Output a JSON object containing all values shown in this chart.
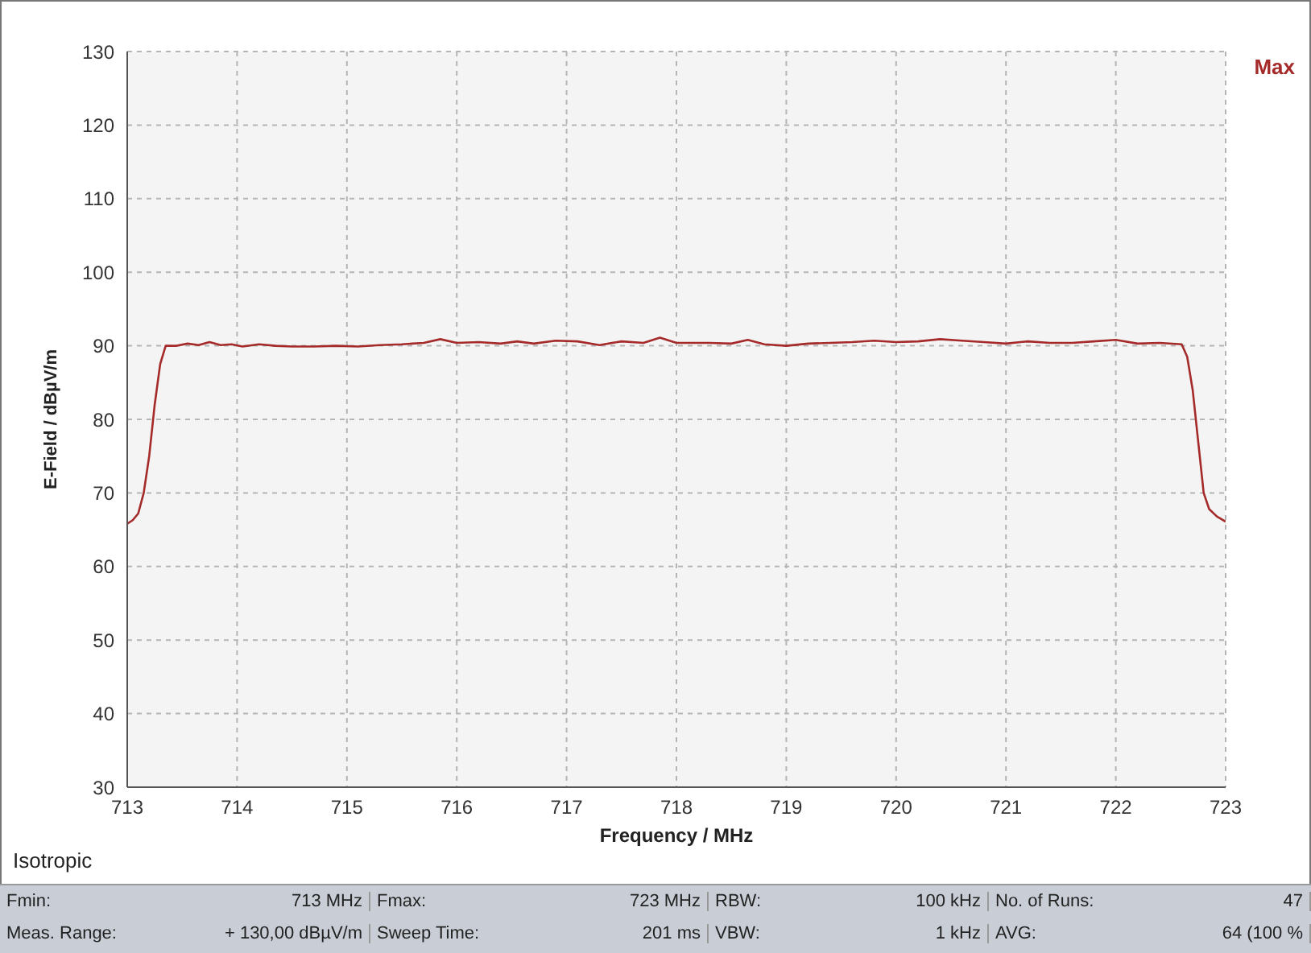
{
  "chart_data": {
    "type": "line",
    "xlabel": "Frequency / MHz",
    "ylabel": "E-Field / dBµV/m",
    "xlim": [
      713,
      723
    ],
    "xticks": [
      713,
      714,
      715,
      716,
      717,
      718,
      719,
      720,
      721,
      722,
      723
    ],
    "ylim": [
      30,
      130
    ],
    "yticks": [
      30,
      40,
      50,
      60,
      70,
      80,
      90,
      100,
      110,
      120,
      130
    ],
    "grid": true,
    "legend": "top right",
    "marker": "none",
    "line_style": "solid",
    "annotations": [
      "Isotropic",
      "Fmin:",
      "713 MHz",
      "Fmax:",
      "723 MHz",
      "RBW:",
      "100 kHz",
      "No. of Runs:",
      "47",
      "Meas. Range:",
      "+ 130,00 dBµV/m",
      "Sweep Time:",
      "201 ms",
      "VBW:",
      "1 kHz",
      "AVG:",
      "64 (100 %"
    ],
    "series": [
      {
        "name": "Max",
        "color": "#a52a2a",
        "x": [
          713.0,
          713.05,
          713.1,
          713.15,
          713.2,
          713.25,
          713.3,
          713.35,
          713.45,
          713.55,
          713.65,
          713.75,
          713.85,
          713.95,
          714.05,
          714.2,
          714.35,
          714.5,
          714.7,
          714.9,
          715.1,
          715.3,
          715.5,
          715.7,
          715.85,
          716.0,
          716.2,
          716.4,
          716.55,
          716.7,
          716.9,
          717.1,
          717.3,
          717.5,
          717.7,
          717.85,
          718.0,
          718.3,
          718.5,
          718.65,
          718.8,
          719.0,
          719.2,
          719.4,
          719.6,
          719.8,
          720.0,
          720.2,
          720.4,
          720.6,
          720.8,
          721.0,
          721.2,
          721.4,
          721.6,
          721.8,
          722.0,
          722.2,
          722.4,
          722.6,
          722.65,
          722.7,
          722.75,
          722.8,
          722.85,
          722.92,
          723.0
        ],
        "values": [
          65.8,
          66.3,
          67.2,
          70,
          75,
          82,
          87.5,
          90,
          90.0,
          90.3,
          90.1,
          90.5,
          90.1,
          90.2,
          89.9,
          90.2,
          90.0,
          89.9,
          89.9,
          90.0,
          89.9,
          90.1,
          90.2,
          90.4,
          90.9,
          90.4,
          90.5,
          90.3,
          90.6,
          90.3,
          90.7,
          90.6,
          90.1,
          90.6,
          90.4,
          91.1,
          90.4,
          90.4,
          90.3,
          90.8,
          90.2,
          90.0,
          90.3,
          90.4,
          90.5,
          90.7,
          90.5,
          90.6,
          90.9,
          90.7,
          90.5,
          90.3,
          90.6,
          90.4,
          90.4,
          90.6,
          90.8,
          90.3,
          90.4,
          90.2,
          88.5,
          84,
          77,
          70,
          67.8,
          66.8,
          66.1
        ]
      }
    ]
  }
}
